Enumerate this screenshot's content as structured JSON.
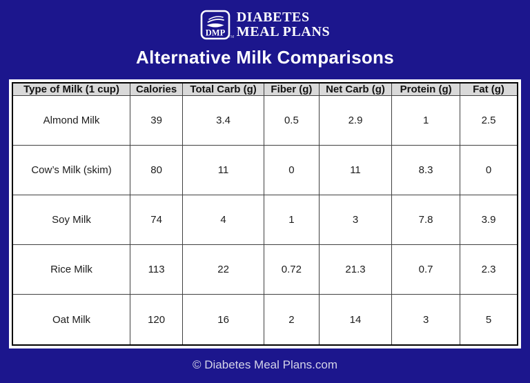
{
  "page": {
    "title": "Alternative Milk Comparisons",
    "footer": "© Diabetes Meal Plans.com",
    "background_color": "#1c168d",
    "accent_text_color": "#ffffff"
  },
  "logo": {
    "icon": "dmp-plate-icon",
    "acronym": "DMP",
    "line1": "DIABETES",
    "line2": "MEAL PLANS",
    "trademark": "TM"
  },
  "chart_data": {
    "type": "table",
    "title": "Alternative Milk Comparisons",
    "columns": [
      "Type of Milk (1 cup)",
      "Calories",
      "Total Carb (g)",
      "Fiber (g)",
      "Net Carb (g)",
      "Protein (g)",
      "Fat (g)"
    ],
    "rows": [
      [
        "Almond Milk",
        "39",
        "3.4",
        "0.5",
        "2.9",
        "1",
        "2.5"
      ],
      [
        "Cow’s Milk (skim)",
        "80",
        "11",
        "0",
        "11",
        "8.3",
        "0"
      ],
      [
        "Soy Milk",
        "74",
        "4",
        "1",
        "3",
        "7.8",
        "3.9"
      ],
      [
        "Rice Milk",
        "113",
        "22",
        "0.72",
        "21.3",
        "0.7",
        "2.3"
      ],
      [
        "Oat Milk",
        "120",
        "16",
        "2",
        "14",
        "3",
        "5"
      ]
    ],
    "column_widths_pct": [
      23.3,
      10.4,
      16.1,
      10.9,
      14.4,
      13.5,
      11.4
    ],
    "header_bg": "#d9d9d9",
    "border_color": "#3f3f3f",
    "outer_border_color": "#000000"
  }
}
